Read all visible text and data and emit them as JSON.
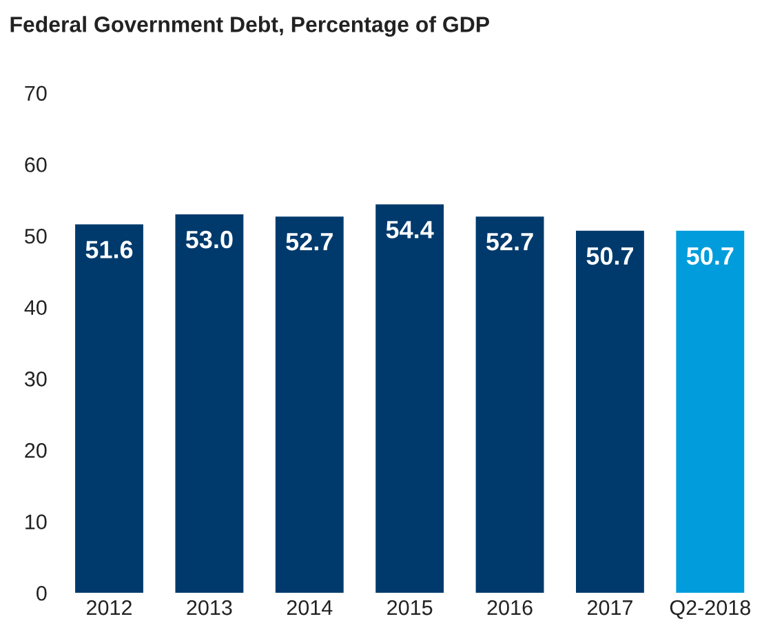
{
  "chart_data": {
    "type": "bar",
    "title": "Federal Government Debt, Percentage of GDP",
    "categories": [
      "2012",
      "2013",
      "2014",
      "2015",
      "2016",
      "2017",
      "Q2-2018"
    ],
    "values": [
      51.6,
      53.0,
      52.7,
      54.4,
      52.7,
      50.7,
      50.7
    ],
    "colors": [
      "#003a6c",
      "#003a6c",
      "#003a6c",
      "#003a6c",
      "#003a6c",
      "#003a6c",
      "#009cdc"
    ],
    "value_labels": [
      "51.6",
      "53.0",
      "52.7",
      "54.4",
      "52.7",
      "50.7",
      "50.7"
    ],
    "ylim": [
      0,
      70
    ],
    "yticks": [
      0,
      10,
      20,
      30,
      40,
      50,
      60,
      70
    ],
    "grid": false,
    "legend": false
  }
}
